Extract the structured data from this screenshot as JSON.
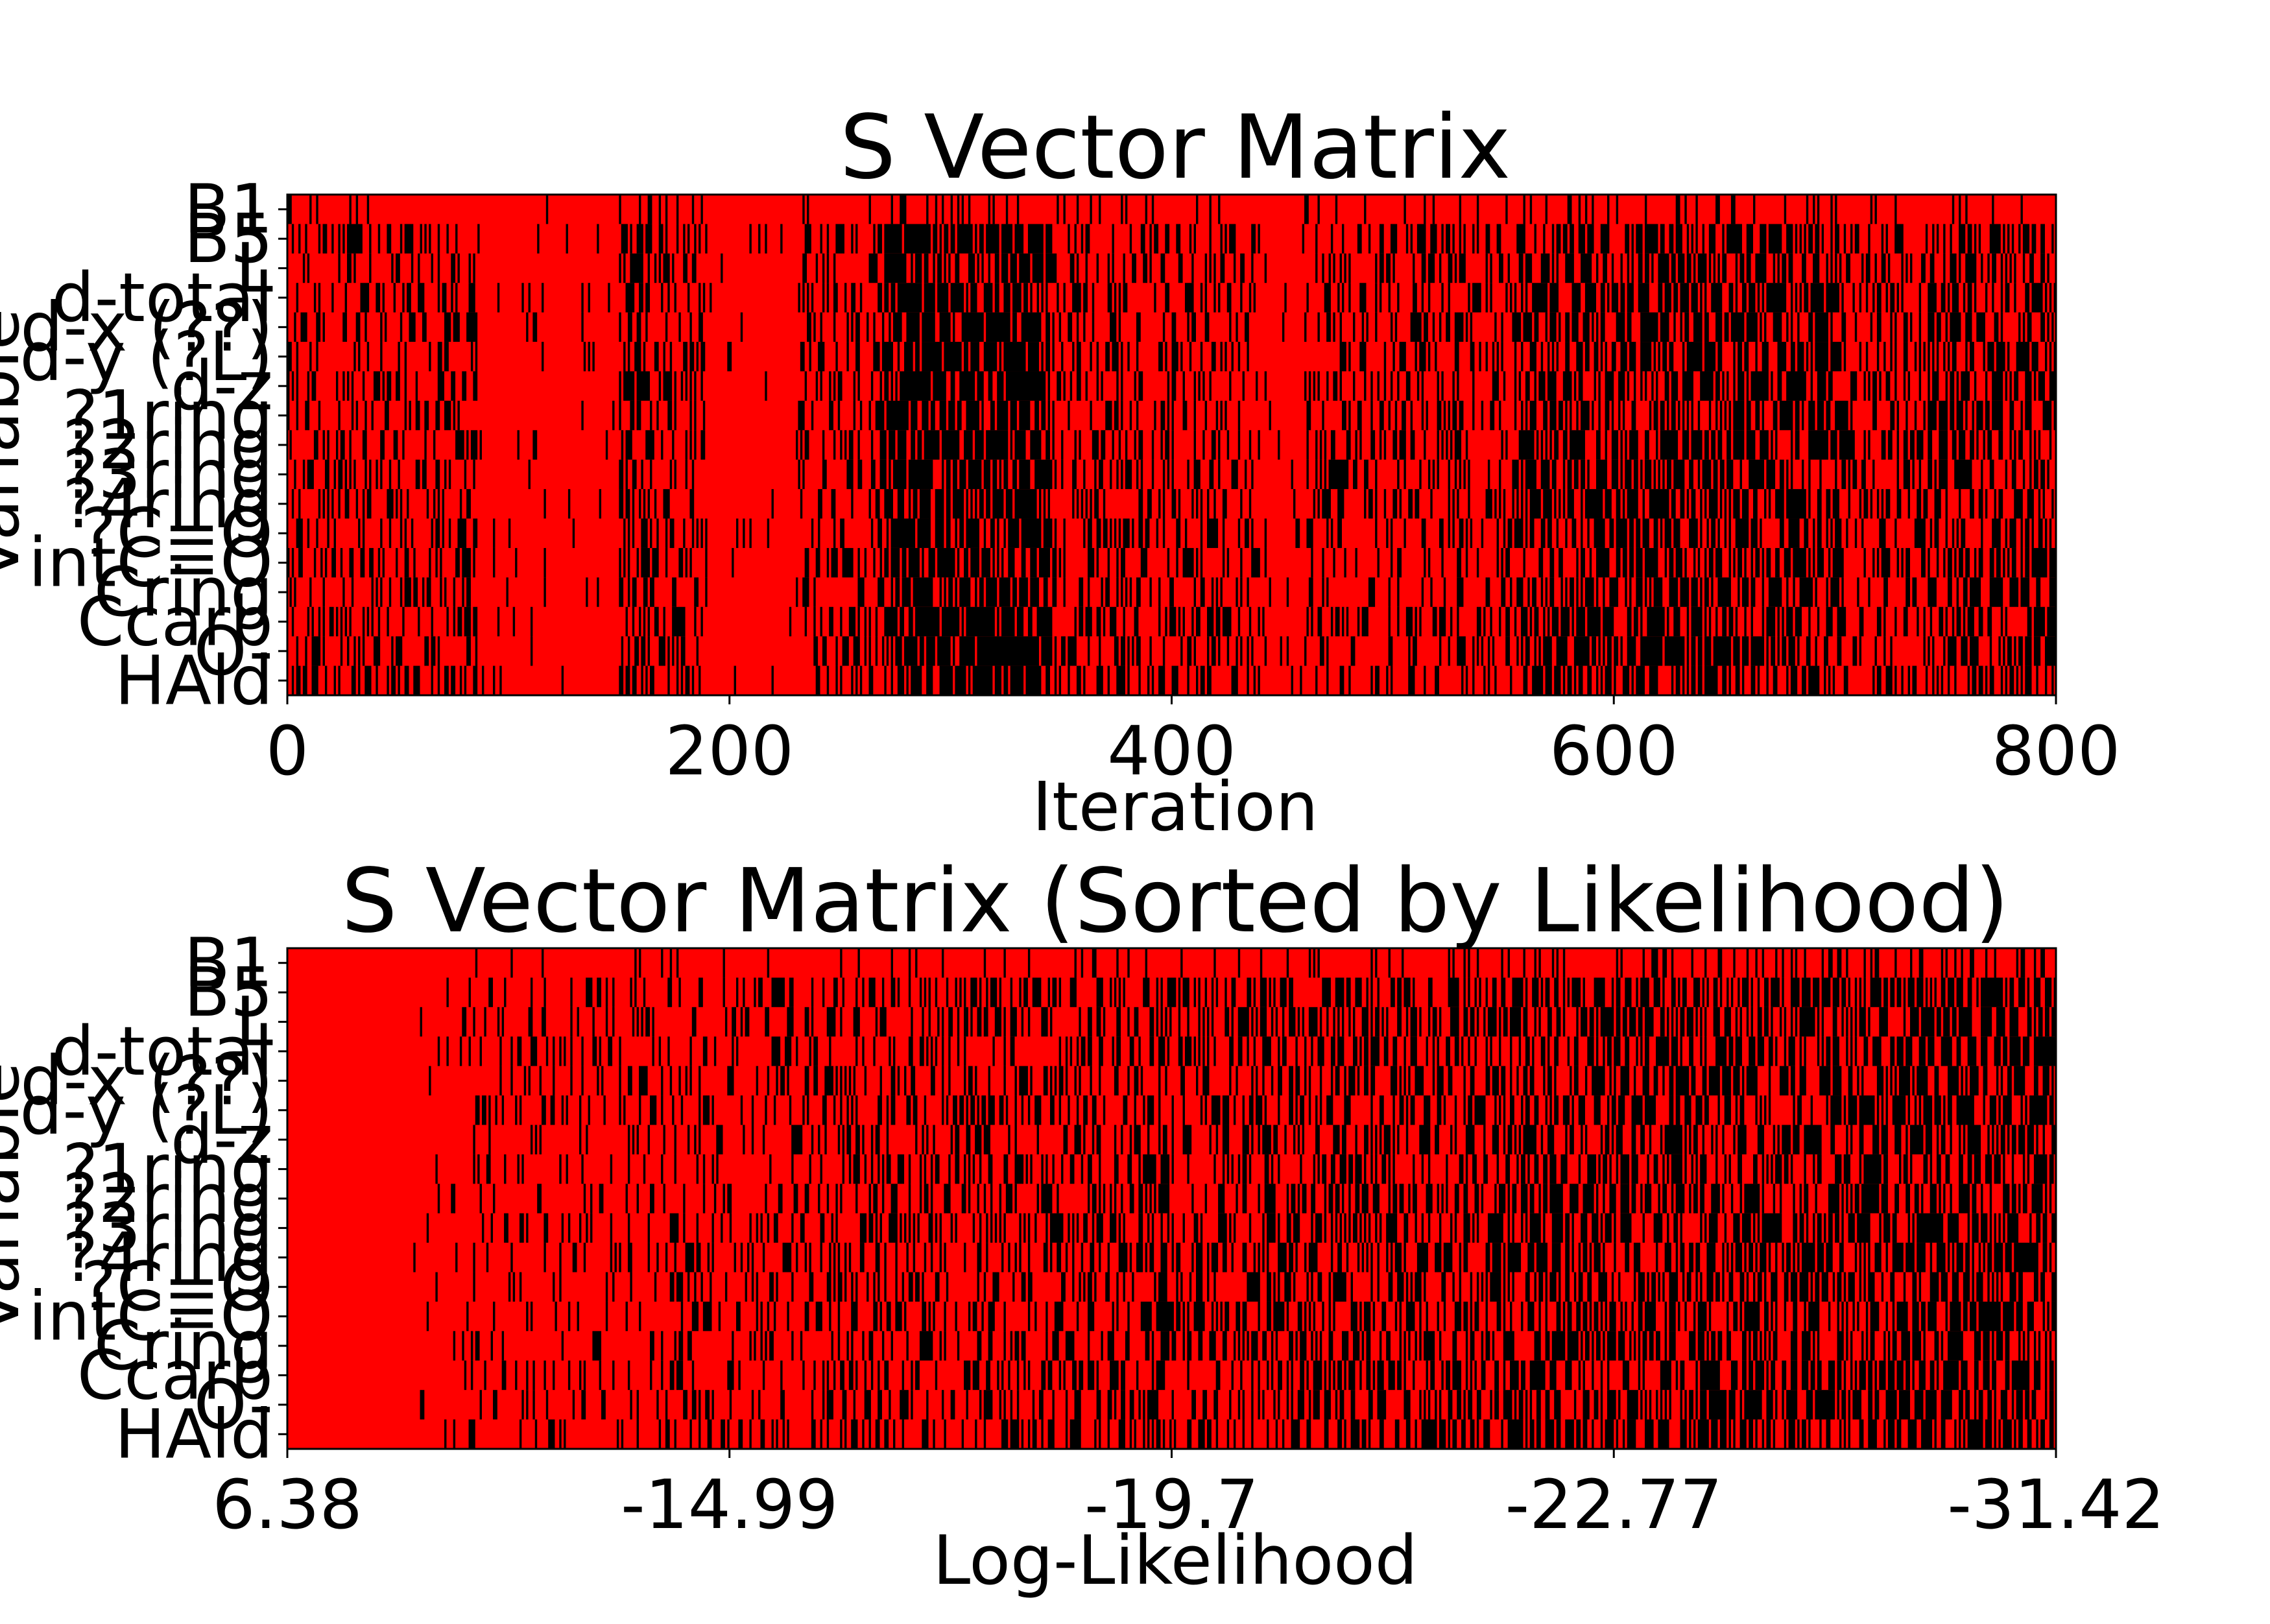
{
  "chart_data": [
    {
      "type": "heatmap",
      "title": "S Vector Matrix",
      "xlabel": "Iteration",
      "ylabel": "Variable",
      "xlim": [
        0,
        800
      ],
      "x_ticks": [
        "0",
        "200",
        "400",
        "600",
        "800"
      ],
      "x_tick_values": [
        0,
        200,
        400,
        600,
        800
      ],
      "y_categories": [
        "B1",
        "B5",
        "L",
        "d-total",
        "d-x (??)",
        "d-y (?L)",
        "d-z",
        "?1ring",
        "?2ring",
        "?3ring",
        "?4ring",
        "?C=O",
        "intC=O",
        "Cring",
        "Ccarb",
        "O-",
        "HAld"
      ],
      "values": "binary matrix (17 variables × 800 iterations); 1 = red cell, 0 = black cell; mostly red with dense black streaks around iterations 270–340, 550–700",
      "value_colors": {
        "1": "#ff0000",
        "0": "#000000"
      },
      "grid": false,
      "legend": "none"
    },
    {
      "type": "heatmap",
      "title": "S Vector Matrix (Sorted by Likelihood)",
      "xlabel": "Log-Likelihood",
      "ylabel": "Variable",
      "x_ticks": [
        "6.38",
        "-14.99",
        "-19.7",
        "-22.77",
        "-31.42"
      ],
      "y_categories": [
        "B1",
        "B5",
        "L",
        "d-total",
        "d-x (??)",
        "d-y (?L)",
        "d-z",
        "?1ring",
        "?2ring",
        "?3ring",
        "?4ring",
        "?C=O",
        "intC=O",
        "Cring",
        "Ccarb",
        "O-",
        "HAld"
      ],
      "values": "binary matrix (17 variables × 800 samples) sorted by descending log-likelihood; 1 = red cell, 0 = black cell; all red on the left, black density increasing to the right",
      "value_colors": {
        "1": "#ff0000",
        "0": "#000000"
      },
      "grid": false,
      "legend": "none"
    }
  ]
}
